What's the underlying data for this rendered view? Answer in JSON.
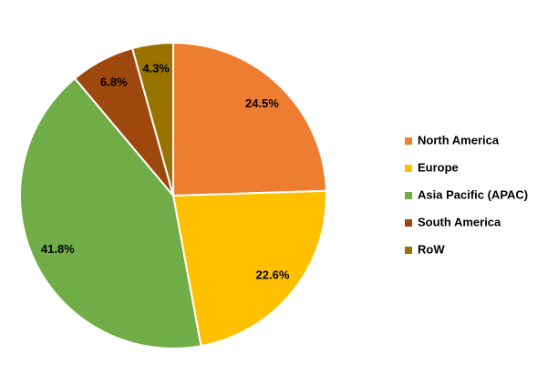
{
  "chart_data": {
    "type": "pie",
    "categories": [
      "North America",
      "Europe",
      "Asia Pacific (APAC)",
      "South America",
      "RoW"
    ],
    "values": [
      24.5,
      22.6,
      41.8,
      6.8,
      4.3
    ],
    "value_labels": [
      "24.5%",
      "22.6%",
      "41.8%",
      "6.8%",
      "4.3%"
    ],
    "colors": [
      "#ed7d31",
      "#ffc000",
      "#70ad47",
      "#9e480e",
      "#997300"
    ],
    "legend": "right"
  }
}
